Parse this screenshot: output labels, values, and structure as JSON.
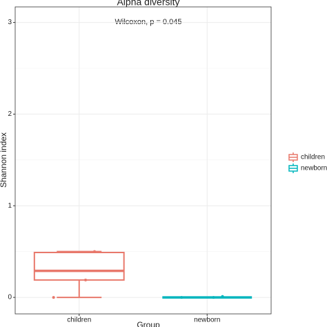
{
  "chart_data": {
    "type": "box",
    "title": "Alpha diversity",
    "annotation": "Wilcoxon, p = 0.045",
    "x_label": "Group",
    "y_label": "Shannon index",
    "categories": [
      "children",
      "newborn"
    ],
    "series": [
      {
        "name": "children",
        "color": "#e8786b",
        "min": 0,
        "q1": 0.19,
        "median": 0.29,
        "q3": 0.49,
        "max": 0.5,
        "points": [
          0.5,
          0.19,
          0
        ]
      },
      {
        "name": "newborn",
        "color": "#00b5bd",
        "min": 0,
        "q1": 0,
        "median": 0,
        "q3": 0,
        "max": 0,
        "points": [
          0.01,
          0,
          0
        ]
      }
    ],
    "ylim": [
      -0.18,
      3.17
    ],
    "yticks": [
      0,
      1,
      2,
      3
    ],
    "grid": true,
    "legend": "right"
  }
}
